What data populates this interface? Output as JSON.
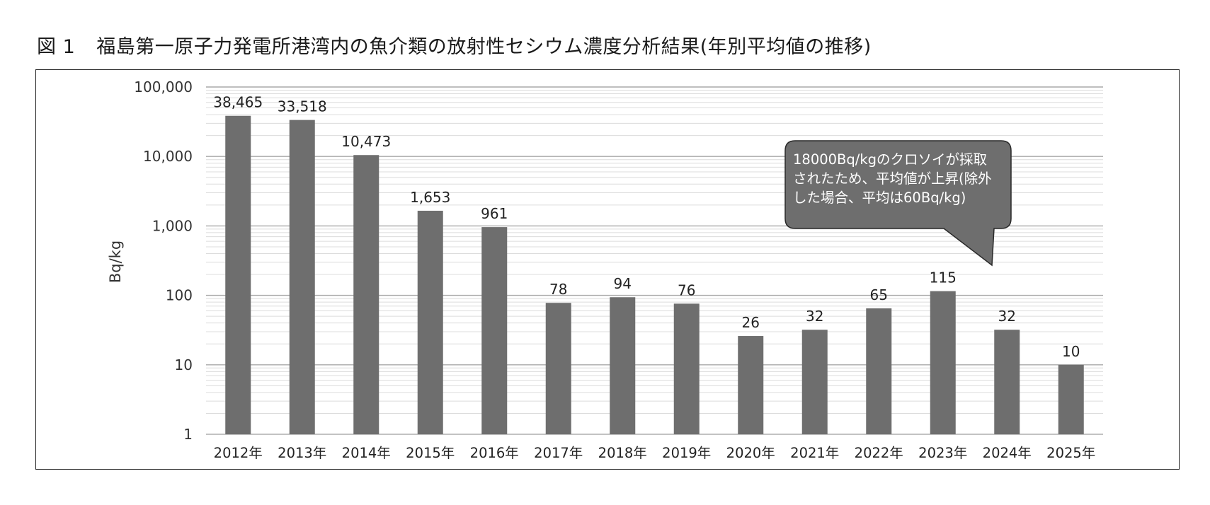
{
  "figure": {
    "number": "図 1",
    "title": "福島第一原子力発電所港湾内の魚介類の放射性セシウム濃度分析結果(年別平均値の推移)"
  },
  "chart_data": {
    "type": "bar",
    "yscale": "log",
    "ylim": [
      1,
      100000
    ],
    "ylabel": "Bq/kg",
    "grid": true,
    "y_ticks": [
      "1",
      "10",
      "100",
      "1,000",
      "10,000",
      "100,000"
    ],
    "y_tick_values": [
      1,
      10,
      100,
      1000,
      10000,
      100000
    ],
    "categories": [
      "2012年",
      "2013年",
      "2014年",
      "2015年",
      "2016年",
      "2017年",
      "2018年",
      "2019年",
      "2020年",
      "2021年",
      "2022年",
      "2023年",
      "2024年",
      "2025年"
    ],
    "values": [
      38465,
      33518,
      10473,
      1653,
      961,
      78,
      94,
      76,
      26,
      32,
      65,
      115,
      32,
      10
    ],
    "data_labels": [
      "38,465",
      "33,518",
      "10,473",
      "1,653",
      "961",
      "78",
      "94",
      "76",
      "26",
      "32",
      "65",
      "115",
      "32",
      "10"
    ],
    "bar_color": "#6e6e6e",
    "annotation": {
      "lines": [
        "18000Bq/kgのクロソイが採取",
        "されたため、平均値が上昇(除外",
        "した場合、平均は60Bq/kg)"
      ],
      "points_to": "2023年",
      "fill": "#6e6e6e"
    }
  }
}
